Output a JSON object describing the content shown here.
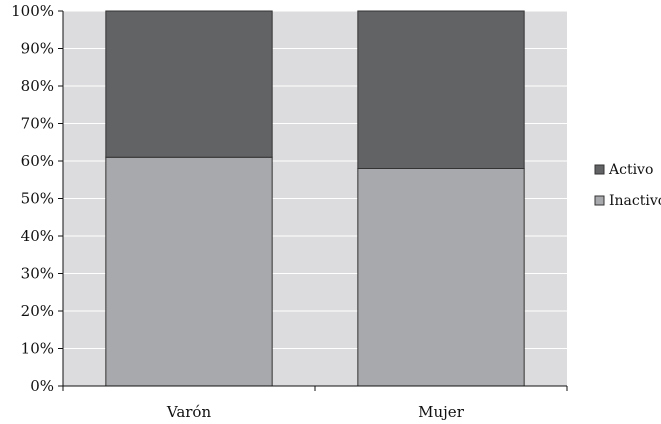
{
  "chart_data": {
    "type": "bar",
    "stacked": true,
    "categories": [
      "Varón",
      "Mujer"
    ],
    "series": [
      {
        "name": "Inactivo",
        "values": [
          61,
          58
        ],
        "color": "#a8a9ac"
      },
      {
        "name": "Activo",
        "values": [
          39,
          42
        ],
        "color": "#626365"
      }
    ],
    "y_ticks": [
      "0%",
      "10%",
      "20%",
      "30%",
      "40%",
      "50%",
      "60%",
      "70%",
      "80%",
      "90%",
      "100%"
    ],
    "ylim": [
      0,
      100
    ],
    "title": "",
    "xlabel": "",
    "ylabel": "",
    "grid": true,
    "legend_position": "right",
    "legend_order": [
      "Activo",
      "Inactivo"
    ],
    "plot_background": "#dcdcde"
  }
}
